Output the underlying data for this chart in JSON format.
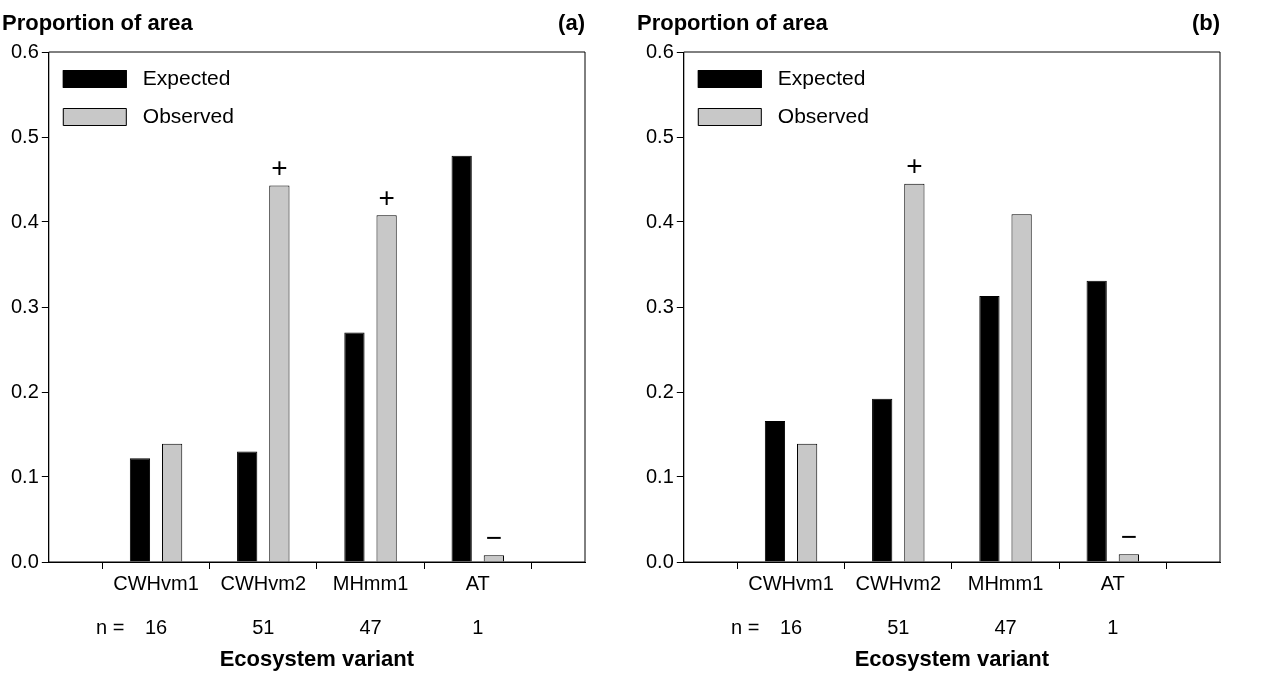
{
  "chart_data": [
    {
      "type": "bar",
      "title": "(a)",
      "ylabel": "Proportion of area",
      "xlabel": "Ecosystem variant",
      "categories": [
        "CWHvm1",
        "CWHvm2",
        "MHmm1",
        "AT"
      ],
      "series": [
        {
          "name": "Expected",
          "color": "#000000",
          "values": [
            0.122,
            0.13,
            0.27,
            0.478
          ]
        },
        {
          "name": "Observed",
          "color": "#c8c8c8",
          "values": [
            0.139,
            0.443,
            0.408,
            0.008
          ],
          "value_labels": [
            null,
            "+",
            "+",
            "−"
          ]
        }
      ],
      "ylim": [
        0,
        0.6
      ],
      "yticks": [
        {
          "value": 0,
          "label": "0.0"
        },
        0.1,
        0.2,
        0.3,
        0.4,
        0.5,
        0.6
      ],
      "legend": "top left",
      "annotations": [
        "n =",
        "16",
        "51",
        "47",
        "1"
      ]
    },
    {
      "type": "bar",
      "title": "(b)",
      "ylabel": "Proportion of area",
      "xlabel": "Ecosystem variant",
      "categories": [
        "CWHvm1",
        "CWHvm2",
        "MHmm1",
        "AT"
      ],
      "series": [
        {
          "name": "Expected",
          "color": "#000000",
          "values": [
            0.166,
            0.192,
            0.313,
            0.331
          ]
        },
        {
          "name": "Observed",
          "color": "#c8c8c8",
          "values": [
            0.139,
            0.445,
            0.409,
            0.009
          ],
          "value_labels": [
            null,
            "+",
            null,
            "−"
          ]
        }
      ],
      "ylim": [
        0,
        0.6
      ],
      "yticks": [
        {
          "value": 0,
          "label": "0.0"
        },
        0.1,
        0.2,
        0.3,
        0.4,
        0.5,
        0.6
      ],
      "legend": "top left",
      "annotations": [
        "n =",
        "16",
        "51",
        "47",
        "1"
      ]
    }
  ]
}
